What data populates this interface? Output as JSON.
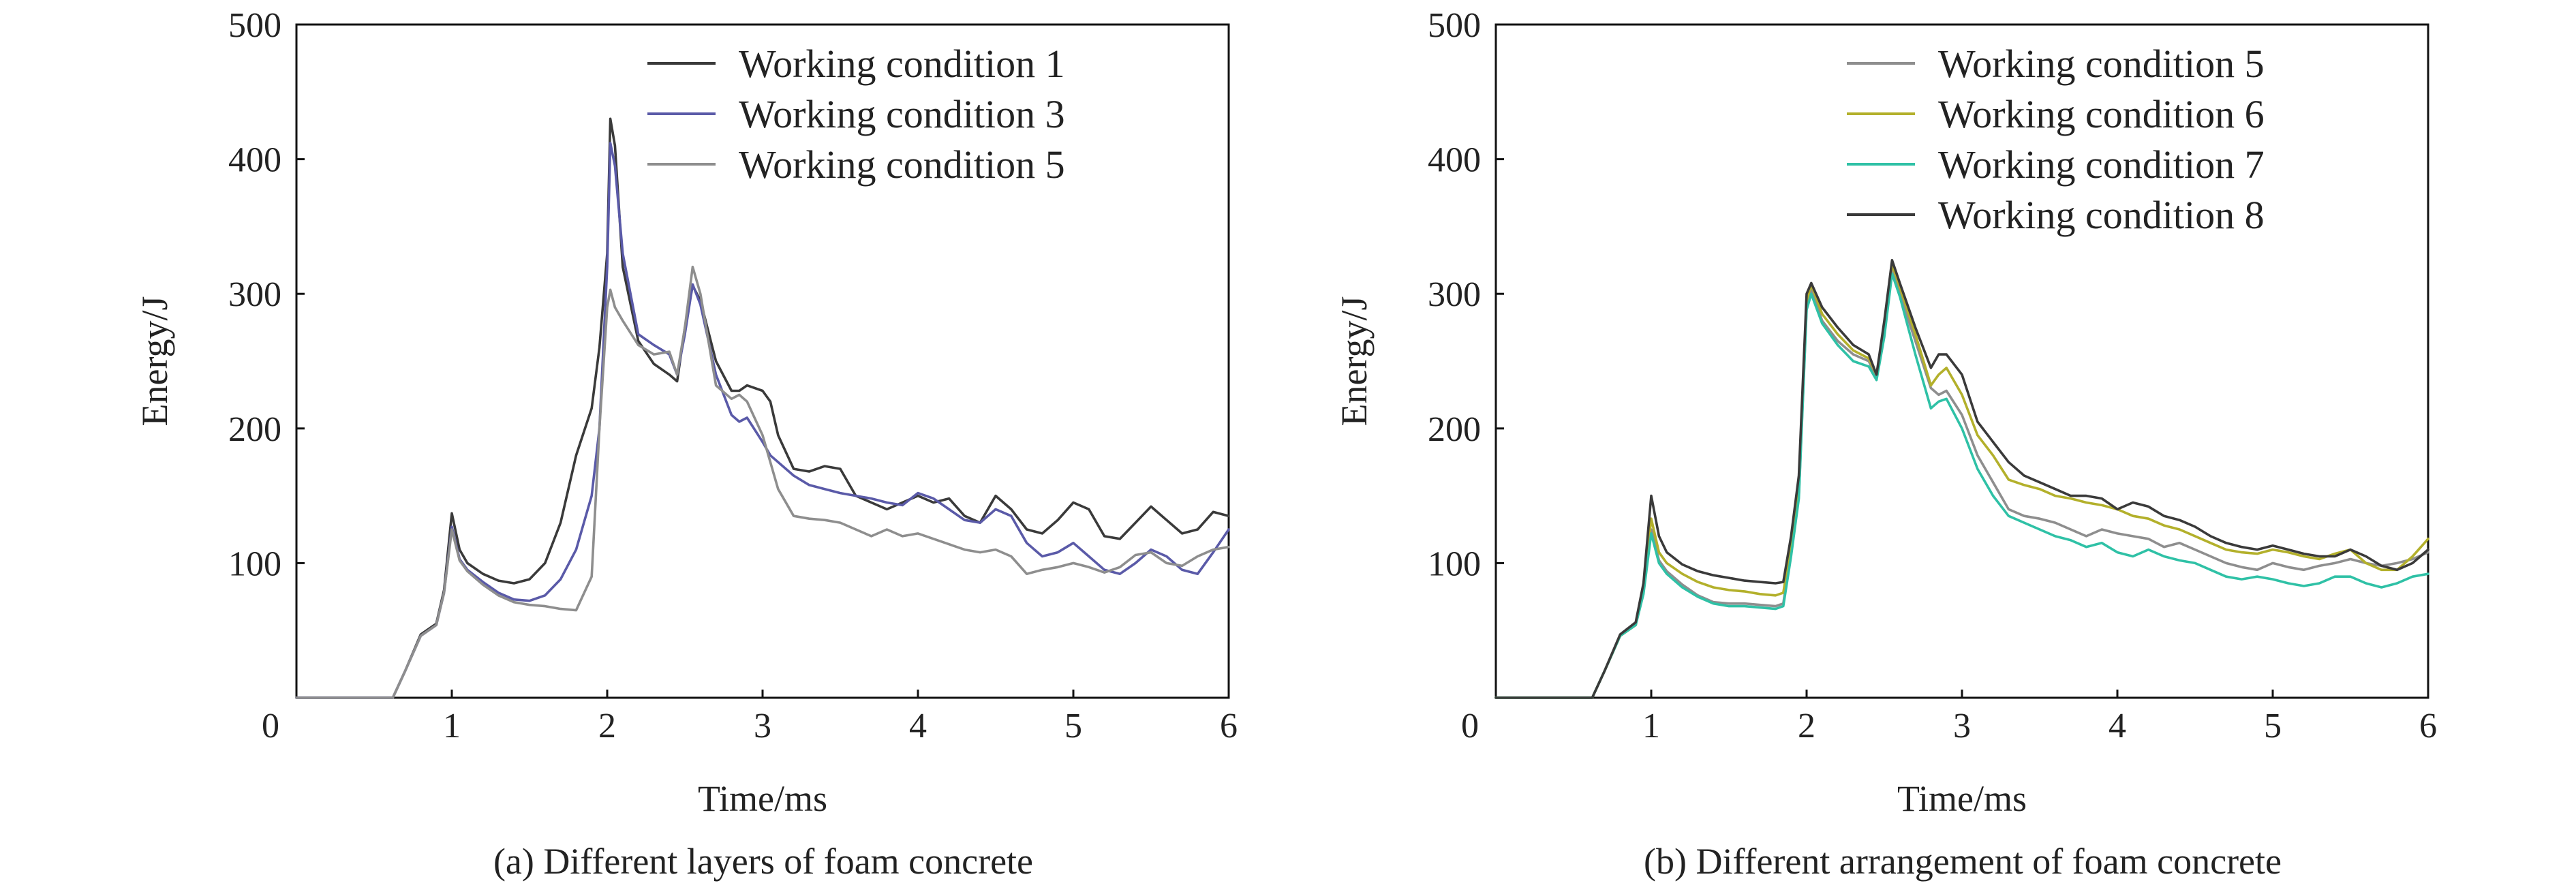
{
  "chart_data": [
    {
      "type": "line",
      "caption": "(a) Different layers of foam concrete",
      "xlabel": "Time/ms",
      "ylabel": "Energy/J",
      "xlim": [
        0,
        6
      ],
      "ylim": [
        0,
        500
      ],
      "xticks": [
        "0",
        "1",
        "2",
        "3",
        "4",
        "5",
        "6"
      ],
      "yticks": [
        "100",
        "200",
        "300",
        "400",
        "500"
      ],
      "legend_position": "top-right",
      "series": [
        {
          "name": "Working condition 1",
          "color": "#3a3a3a",
          "x": [
            0,
            0.5,
            0.62,
            0.7,
            0.8,
            0.9,
            0.95,
            1.0,
            1.05,
            1.1,
            1.2,
            1.3,
            1.4,
            1.5,
            1.6,
            1.7,
            1.8,
            1.9,
            1.95,
            2.0,
            2.02,
            2.05,
            2.1,
            2.2,
            2.3,
            2.4,
            2.45,
            2.5,
            2.55,
            2.6,
            2.7,
            2.8,
            2.85,
            2.9,
            3.0,
            3.05,
            3.1,
            3.2,
            3.3,
            3.4,
            3.5,
            3.6,
            3.7,
            3.8,
            3.9,
            4.0,
            4.1,
            4.2,
            4.3,
            4.4,
            4.5,
            4.6,
            4.7,
            4.8,
            4.9,
            5.0,
            5.1,
            5.2,
            5.3,
            5.4,
            5.5,
            5.6,
            5.7,
            5.8,
            5.9,
            6.0
          ],
          "y": [
            0,
            0,
            0,
            20,
            47,
            55,
            80,
            137,
            110,
            100,
            92,
            87,
            85,
            88,
            100,
            130,
            180,
            215,
            260,
            330,
            430,
            410,
            320,
            265,
            248,
            240,
            235,
            275,
            306,
            295,
            250,
            228,
            228,
            232,
            228,
            220,
            195,
            170,
            168,
            172,
            170,
            150,
            145,
            140,
            145,
            150,
            145,
            148,
            135,
            130,
            150,
            140,
            125,
            122,
            132,
            145,
            140,
            120,
            118,
            130,
            142,
            132,
            122,
            125,
            138,
            135
          ]
        },
        {
          "name": "Working condition 3",
          "color": "#5a5aa8",
          "x": [
            0,
            0.5,
            0.62,
            0.7,
            0.8,
            0.9,
            0.95,
            1.0,
            1.05,
            1.1,
            1.2,
            1.3,
            1.4,
            1.5,
            1.6,
            1.7,
            1.8,
            1.9,
            1.95,
            2.0,
            2.02,
            2.05,
            2.1,
            2.2,
            2.3,
            2.4,
            2.45,
            2.5,
            2.55,
            2.6,
            2.7,
            2.8,
            2.85,
            2.9,
            3.0,
            3.05,
            3.1,
            3.2,
            3.3,
            3.4,
            3.5,
            3.6,
            3.7,
            3.8,
            3.9,
            4.0,
            4.1,
            4.2,
            4.3,
            4.4,
            4.5,
            4.6,
            4.7,
            4.8,
            4.9,
            5.0,
            5.1,
            5.2,
            5.3,
            5.4,
            5.5,
            5.6,
            5.7,
            5.8,
            5.9,
            6.0
          ],
          "y": [
            0,
            0,
            0,
            20,
            46,
            54,
            78,
            127,
            103,
            95,
            86,
            78,
            73,
            72,
            76,
            88,
            110,
            150,
            200,
            320,
            412,
            395,
            330,
            270,
            262,
            255,
            240,
            270,
            307,
            292,
            240,
            210,
            205,
            208,
            190,
            180,
            175,
            165,
            158,
            155,
            152,
            150,
            148,
            145,
            143,
            152,
            148,
            140,
            132,
            130,
            140,
            135,
            115,
            105,
            108,
            115,
            105,
            95,
            92,
            100,
            110,
            105,
            95,
            92,
            108,
            125
          ]
        },
        {
          "name": "Working condition 5",
          "color": "#8e8e8e",
          "x": [
            0,
            0.5,
            0.62,
            0.7,
            0.8,
            0.9,
            0.95,
            1.0,
            1.05,
            1.1,
            1.2,
            1.3,
            1.4,
            1.5,
            1.6,
            1.7,
            1.8,
            1.9,
            1.95,
            2.0,
            2.02,
            2.05,
            2.1,
            2.2,
            2.3,
            2.4,
            2.45,
            2.5,
            2.55,
            2.6,
            2.7,
            2.8,
            2.85,
            2.9,
            3.0,
            3.05,
            3.1,
            3.2,
            3.3,
            3.4,
            3.5,
            3.6,
            3.7,
            3.8,
            3.9,
            4.0,
            4.1,
            4.2,
            4.3,
            4.4,
            4.5,
            4.6,
            4.7,
            4.8,
            4.9,
            5.0,
            5.1,
            5.2,
            5.3,
            5.4,
            5.5,
            5.6,
            5.7,
            5.8,
            5.9,
            6.0
          ],
          "y": [
            0,
            0,
            0,
            20,
            46,
            54,
            78,
            125,
            102,
            94,
            84,
            76,
            71,
            69,
            68,
            66,
            65,
            90,
            200,
            290,
            303,
            290,
            280,
            262,
            255,
            257,
            240,
            275,
            320,
            300,
            232,
            222,
            225,
            220,
            195,
            175,
            155,
            135,
            133,
            132,
            130,
            125,
            120,
            125,
            120,
            122,
            118,
            114,
            110,
            108,
            110,
            105,
            92,
            95,
            97,
            100,
            97,
            93,
            97,
            106,
            108,
            100,
            98,
            105,
            110,
            112
          ]
        }
      ]
    },
    {
      "type": "line",
      "caption": "(b) Different arrangement of foam concrete",
      "xlabel": "Time/ms",
      "ylabel": "Energy/J",
      "xlim": [
        0,
        6
      ],
      "ylim": [
        0,
        500
      ],
      "xticks": [
        "0",
        "1",
        "2",
        "3",
        "4",
        "5",
        "6"
      ],
      "yticks": [
        "100",
        "200",
        "300",
        "400",
        "500"
      ],
      "legend_position": "top-right",
      "series": [
        {
          "name": "Working condition 5",
          "color": "#8e8e8e",
          "x": [
            0,
            0.5,
            0.62,
            0.7,
            0.8,
            0.9,
            0.95,
            1.0,
            1.05,
            1.1,
            1.2,
            1.3,
            1.4,
            1.5,
            1.6,
            1.7,
            1.8,
            1.85,
            1.9,
            1.95,
            2.0,
            2.03,
            2.1,
            2.2,
            2.3,
            2.4,
            2.45,
            2.5,
            2.55,
            2.6,
            2.7,
            2.8,
            2.85,
            2.9,
            3.0,
            3.1,
            3.2,
            3.3,
            3.4,
            3.5,
            3.6,
            3.7,
            3.8,
            3.9,
            4.0,
            4.1,
            4.2,
            4.3,
            4.4,
            4.5,
            4.6,
            4.7,
            4.8,
            4.9,
            5.0,
            5.1,
            5.2,
            5.3,
            5.4,
            5.5,
            5.6,
            5.7,
            5.8,
            5.9,
            6.0
          ],
          "y": [
            0,
            0,
            0,
            20,
            46,
            54,
            78,
            125,
            102,
            94,
            84,
            76,
            71,
            70,
            70,
            69,
            68,
            70,
            110,
            150,
            290,
            303,
            280,
            265,
            255,
            250,
            238,
            270,
            318,
            300,
            265,
            230,
            225,
            228,
            210,
            180,
            160,
            140,
            135,
            133,
            130,
            125,
            120,
            125,
            122,
            120,
            118,
            112,
            115,
            110,
            105,
            100,
            97,
            95,
            100,
            97,
            95,
            98,
            100,
            103,
            100,
            98,
            100,
            103,
            108
          ]
        },
        {
          "name": "Working condition 6",
          "color": "#b3b02b",
          "x": [
            0,
            0.5,
            0.62,
            0.7,
            0.8,
            0.9,
            0.95,
            1.0,
            1.05,
            1.1,
            1.2,
            1.3,
            1.4,
            1.5,
            1.6,
            1.7,
            1.8,
            1.85,
            1.9,
            1.95,
            2.0,
            2.03,
            2.1,
            2.2,
            2.3,
            2.4,
            2.45,
            2.5,
            2.55,
            2.6,
            2.7,
            2.8,
            2.85,
            2.9,
            3.0,
            3.1,
            3.2,
            3.3,
            3.4,
            3.5,
            3.6,
            3.7,
            3.8,
            3.9,
            4.0,
            4.1,
            4.2,
            4.3,
            4.4,
            4.5,
            4.6,
            4.7,
            4.8,
            4.9,
            5.0,
            5.1,
            5.2,
            5.3,
            5.4,
            5.5,
            5.6,
            5.7,
            5.8,
            5.9,
            6.0
          ],
          "y": [
            0,
            0,
            0,
            20,
            46,
            54,
            80,
            133,
            108,
            100,
            92,
            86,
            82,
            80,
            79,
            77,
            76,
            78,
            115,
            160,
            295,
            307,
            285,
            270,
            258,
            252,
            240,
            275,
            322,
            305,
            270,
            232,
            240,
            245,
            225,
            195,
            180,
            162,
            158,
            155,
            150,
            148,
            145,
            143,
            140,
            135,
            133,
            128,
            125,
            120,
            115,
            110,
            108,
            107,
            110,
            108,
            105,
            103,
            107,
            110,
            100,
            95,
            95,
            105,
            118
          ]
        },
        {
          "name": "Working condition 7",
          "color": "#2fc1a6",
          "x": [
            0,
            0.5,
            0.62,
            0.7,
            0.8,
            0.9,
            0.95,
            1.0,
            1.05,
            1.1,
            1.2,
            1.3,
            1.4,
            1.5,
            1.6,
            1.7,
            1.8,
            1.85,
            1.9,
            1.95,
            2.0,
            2.03,
            2.1,
            2.2,
            2.3,
            2.4,
            2.45,
            2.5,
            2.55,
            2.6,
            2.7,
            2.8,
            2.85,
            2.9,
            3.0,
            3.1,
            3.2,
            3.3,
            3.4,
            3.5,
            3.6,
            3.7,
            3.8,
            3.9,
            4.0,
            4.1,
            4.2,
            4.3,
            4.4,
            4.5,
            4.6,
            4.7,
            4.8,
            4.9,
            5.0,
            5.1,
            5.2,
            5.3,
            5.4,
            5.5,
            5.6,
            5.7,
            5.8,
            5.9,
            6.0
          ],
          "y": [
            0,
            0,
            0,
            20,
            46,
            54,
            77,
            122,
            100,
            92,
            82,
            75,
            70,
            68,
            68,
            67,
            66,
            68,
            105,
            148,
            288,
            300,
            278,
            262,
            250,
            246,
            236,
            268,
            315,
            298,
            255,
            215,
            220,
            222,
            200,
            170,
            150,
            135,
            130,
            125,
            120,
            117,
            112,
            115,
            108,
            105,
            110,
            105,
            102,
            100,
            95,
            90,
            88,
            90,
            88,
            85,
            83,
            85,
            90,
            90,
            85,
            82,
            85,
            90,
            92
          ]
        },
        {
          "name": "Working condition 8",
          "color": "#3a3a3a",
          "x": [
            0,
            0.5,
            0.62,
            0.7,
            0.8,
            0.9,
            0.95,
            1.0,
            1.05,
            1.1,
            1.2,
            1.3,
            1.4,
            1.5,
            1.6,
            1.7,
            1.8,
            1.85,
            1.9,
            1.95,
            2.0,
            2.03,
            2.1,
            2.2,
            2.3,
            2.4,
            2.45,
            2.5,
            2.55,
            2.6,
            2.7,
            2.8,
            2.85,
            2.9,
            3.0,
            3.1,
            3.2,
            3.3,
            3.4,
            3.5,
            3.6,
            3.7,
            3.8,
            3.9,
            4.0,
            4.1,
            4.2,
            4.3,
            4.4,
            4.5,
            4.6,
            4.7,
            4.8,
            4.9,
            5.0,
            5.1,
            5.2,
            5.3,
            5.4,
            5.5,
            5.6,
            5.7,
            5.8,
            5.9,
            6.0
          ],
          "y": [
            0,
            0,
            0,
            20,
            47,
            56,
            85,
            150,
            120,
            108,
            99,
            94,
            91,
            89,
            87,
            86,
            85,
            86,
            120,
            165,
            300,
            308,
            290,
            275,
            262,
            255,
            240,
            280,
            325,
            308,
            275,
            245,
            255,
            255,
            240,
            205,
            190,
            175,
            165,
            160,
            155,
            150,
            150,
            148,
            140,
            145,
            142,
            135,
            132,
            127,
            120,
            115,
            112,
            110,
            113,
            110,
            107,
            105,
            105,
            110,
            105,
            98,
            95,
            100,
            110
          ]
        }
      ]
    }
  ]
}
